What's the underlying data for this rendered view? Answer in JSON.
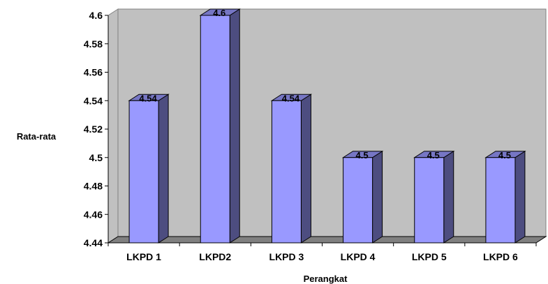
{
  "chart_data": {
    "type": "bar",
    "title": "",
    "xlabel": "Perangkat",
    "ylabel": "Rata-rata",
    "categories": [
      "LKPD 1",
      "LKPD2",
      "LKPD 3",
      "LKPD 4",
      "LKPD 5",
      "LKPD 6"
    ],
    "values": [
      4.54,
      4.6,
      4.54,
      4.5,
      4.5,
      4.5
    ],
    "value_labels": [
      "4.54",
      "4.6",
      "4.54",
      "4.5",
      "4.5",
      "4.5"
    ],
    "ylim": [
      4.44,
      4.6
    ],
    "yticks": [
      "4.44",
      "4.46",
      "4.48",
      "4.5",
      "4.52",
      "4.54",
      "4.56",
      "4.58",
      "4.6"
    ],
    "grid": false,
    "legend": "none",
    "colors": {
      "wall": "#c0c0c0",
      "floor": "#808080",
      "bar_front": "#9999ff",
      "bar_side": "#4d4d80",
      "bar_top": "#7676c4",
      "edge": "#000000"
    }
  }
}
